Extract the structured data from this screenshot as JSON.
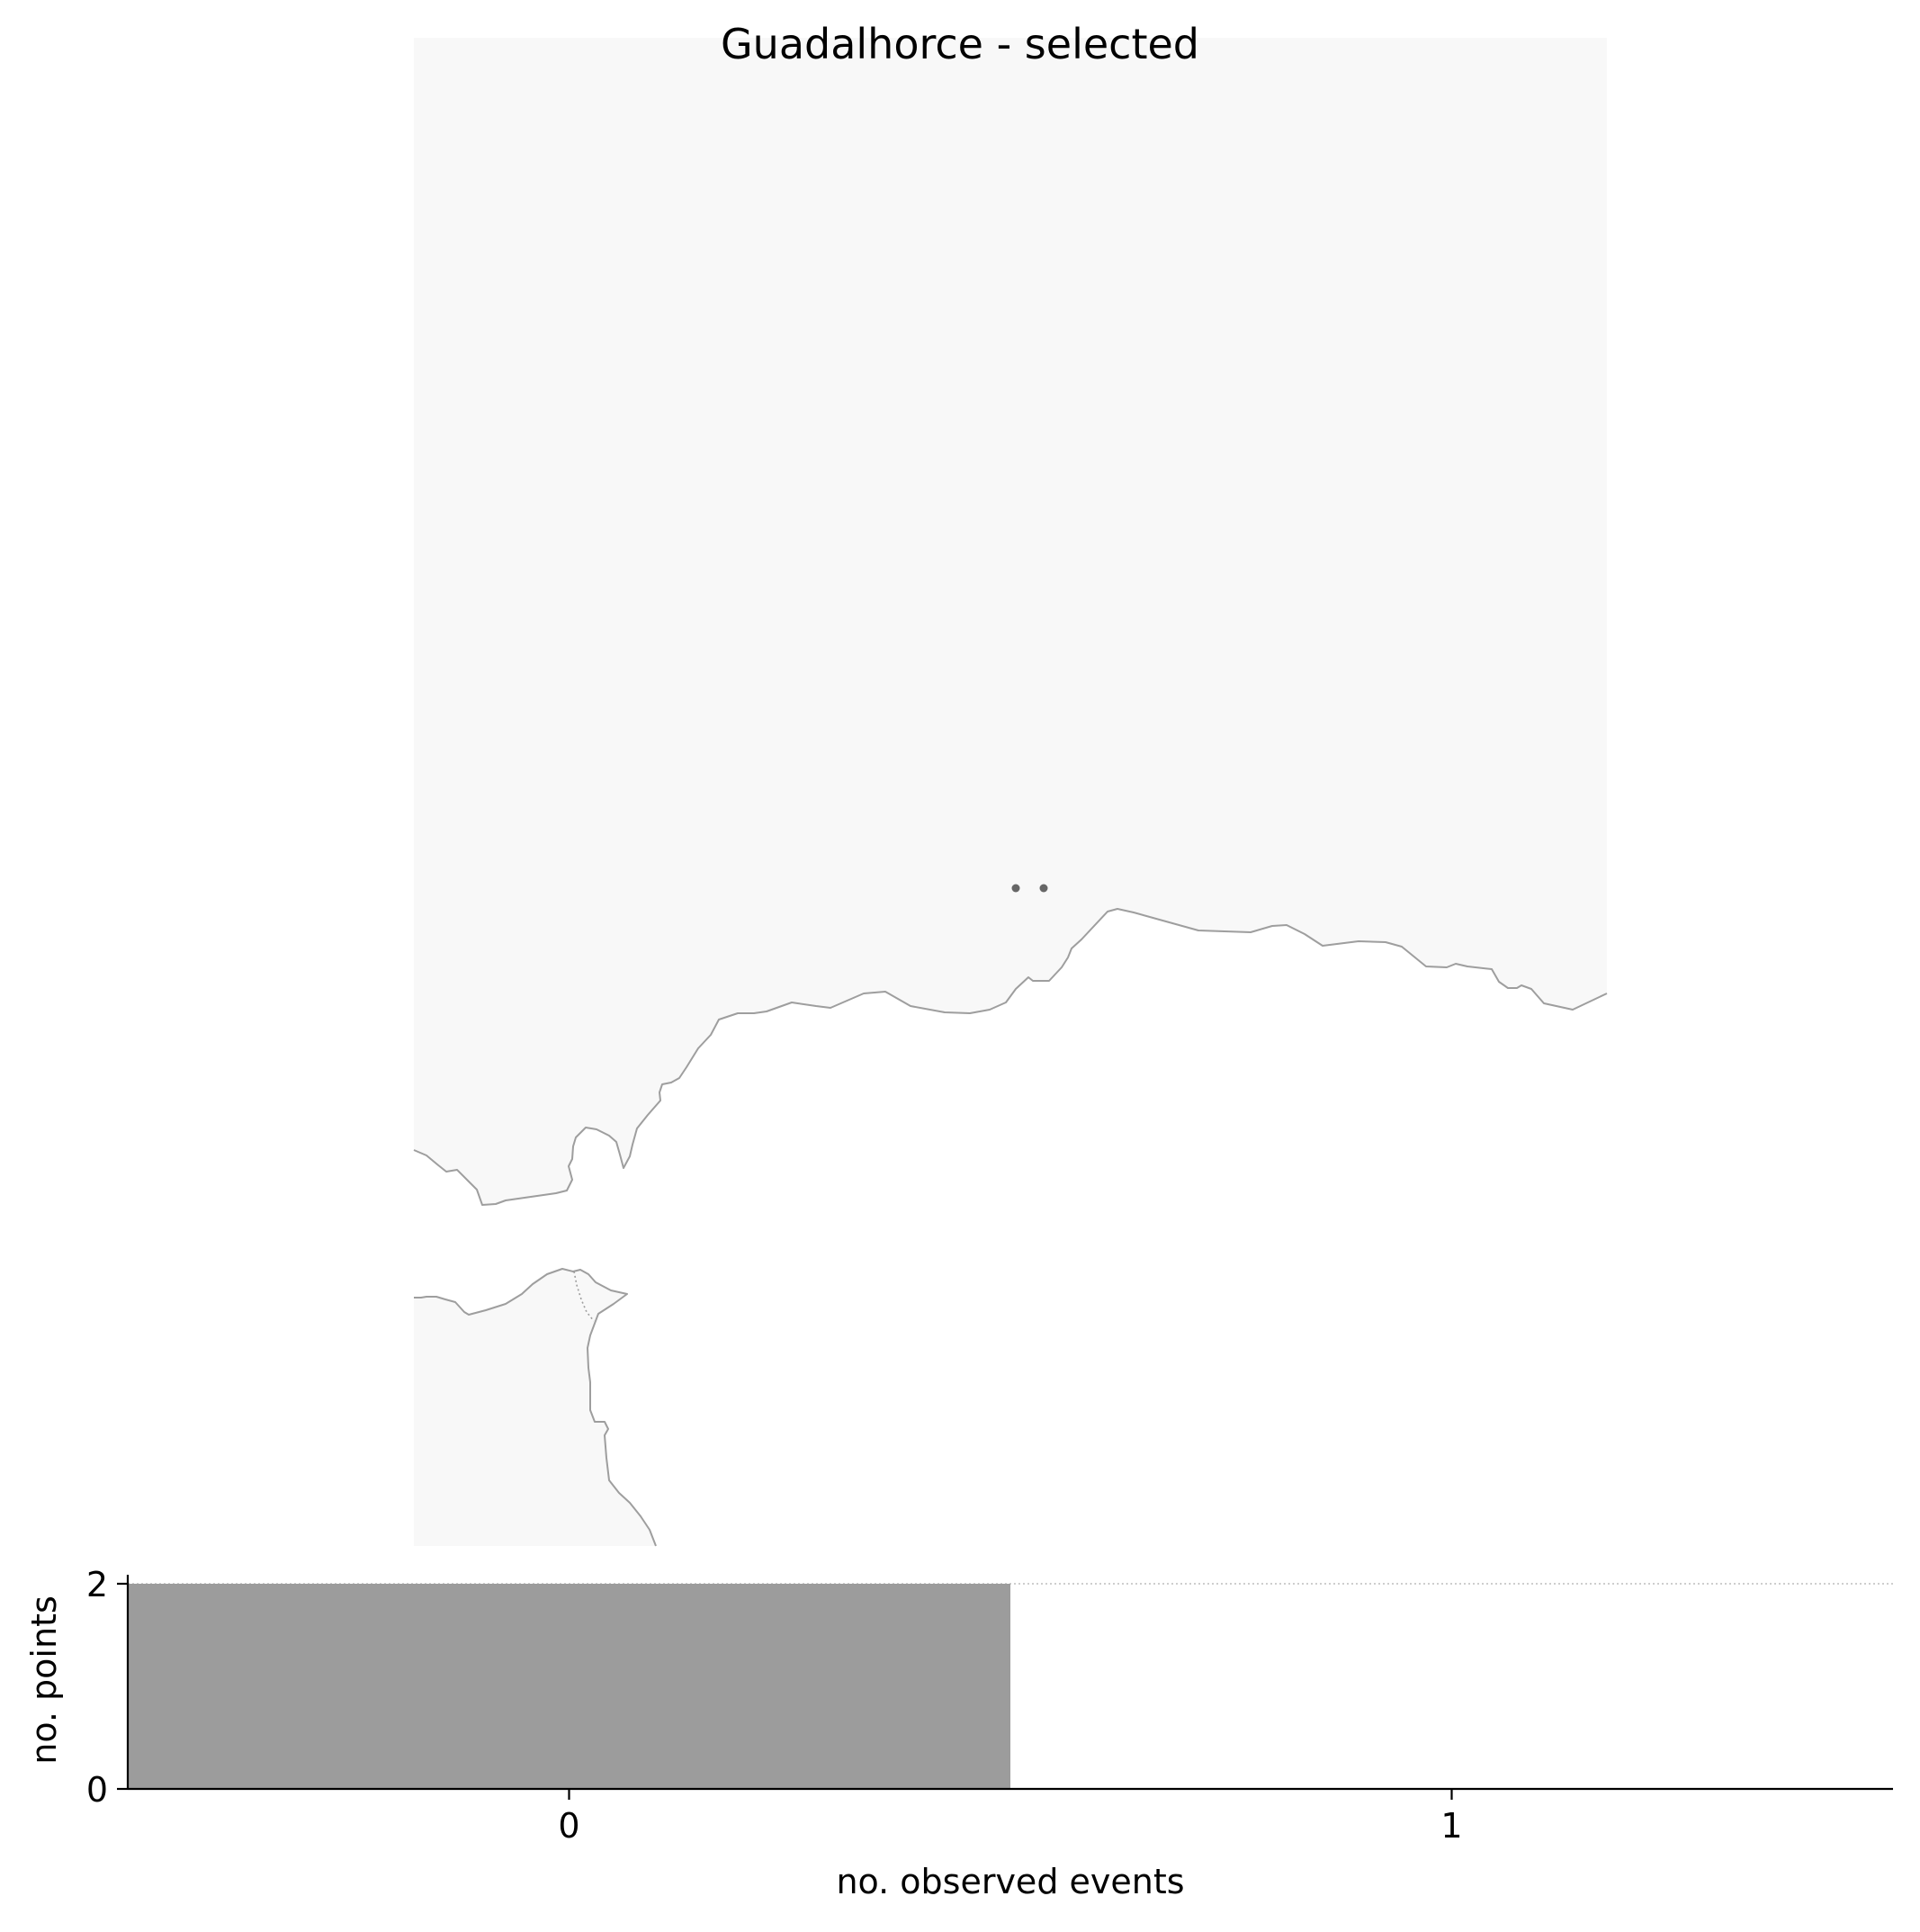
{
  "map": {
    "title": "Guadalhorce - selected",
    "colors": {
      "land": "#f8f8f8",
      "coastline": "#9e9e9e",
      "point": "#666666"
    },
    "points": [
      {
        "name": "point-1"
      },
      {
        "name": "point-2"
      }
    ]
  },
  "chart_data": {
    "type": "bar",
    "categories": [
      "0",
      "1"
    ],
    "values": [
      2,
      0
    ],
    "xlabel": "no. observed events",
    "ylabel": "no. points",
    "yticks": [
      "0",
      "2"
    ],
    "xticks": [
      "0",
      "1"
    ],
    "ylim": [
      0,
      2
    ],
    "grid": false,
    "bar_color": "#9c9c9c",
    "reference_line": 2
  }
}
